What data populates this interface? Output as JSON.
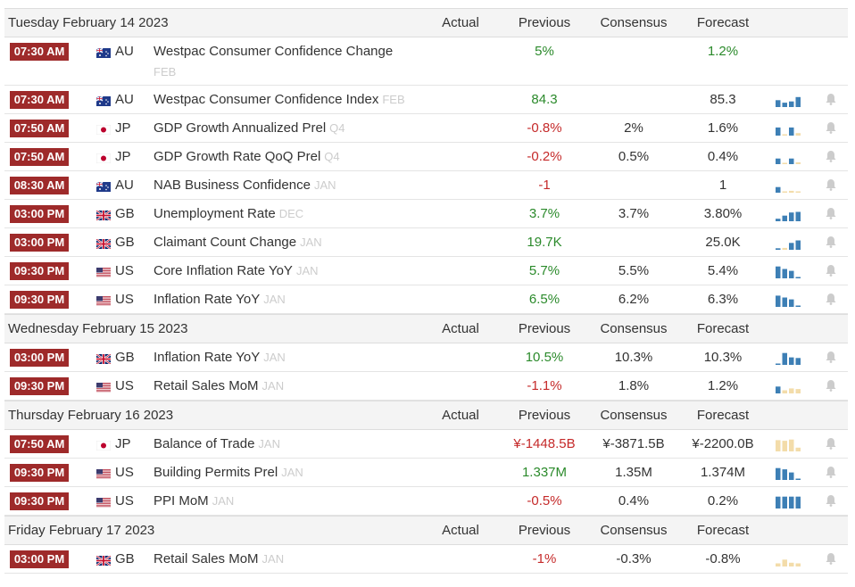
{
  "columns": {
    "actual": "Actual",
    "previous": "Previous",
    "consensus": "Consensus",
    "forecast": "Forecast"
  },
  "groups": [
    {
      "date": "Tuesday February 14 2023",
      "rows": [
        {
          "time": "07:30 AM",
          "flag": "au",
          "country": "AU",
          "event": "Westpac Consumer Confidence Change",
          "period": "FEB",
          "actual": "",
          "previous": "5%",
          "previous_color": "pos",
          "consensus": "",
          "forecast": "1.2%",
          "forecast_color": "pos",
          "tall": true,
          "chart": null
        },
        {
          "time": "07:30 AM",
          "flag": "au",
          "country": "AU",
          "event": "Westpac Consumer Confidence Index",
          "period": "FEB",
          "actual": "",
          "previous": "84.3",
          "previous_color": "pos",
          "consensus": "",
          "forecast": "85.3",
          "forecast_color": "",
          "chart": [
            {
              "v": 0.55,
              "c": "b"
            },
            {
              "v": 0.35,
              "c": "b"
            },
            {
              "v": 0.45,
              "c": "b"
            },
            {
              "v": 0.8,
              "c": "b"
            }
          ]
        },
        {
          "time": "07:50 AM",
          "flag": "jp",
          "country": "JP",
          "event": "GDP Growth Annualized Prel",
          "period": "Q4",
          "actual": "",
          "previous": "-0.8%",
          "previous_color": "neg",
          "consensus": "2%",
          "forecast": "1.6%",
          "forecast_color": "",
          "chart": [
            {
              "v": 0.65,
              "c": "b"
            },
            {
              "v": 0.1,
              "c": "t"
            },
            {
              "v": 0.65,
              "c": "b"
            },
            {
              "v": 0.2,
              "c": "t"
            }
          ]
        },
        {
          "time": "07:50 AM",
          "flag": "jp",
          "country": "JP",
          "event": "GDP Growth Rate QoQ Prel",
          "period": "Q4",
          "actual": "",
          "previous": "-0.2%",
          "previous_color": "neg",
          "consensus": "0.5%",
          "forecast": "0.4%",
          "forecast_color": "",
          "chart": [
            {
              "v": 0.45,
              "c": "b"
            },
            {
              "v": 0.1,
              "c": "t"
            },
            {
              "v": 0.45,
              "c": "b"
            },
            {
              "v": 0.15,
              "c": "t"
            }
          ]
        },
        {
          "time": "08:30 AM",
          "flag": "au",
          "country": "AU",
          "event": "NAB Business Confidence",
          "period": "JAN",
          "actual": "",
          "previous": "-1",
          "previous_color": "neg",
          "consensus": "",
          "forecast": "1",
          "forecast_color": "",
          "chart": [
            {
              "v": 0.45,
              "c": "b"
            },
            {
              "v": 0.1,
              "c": "t"
            },
            {
              "v": 0.15,
              "c": "t"
            },
            {
              "v": 0.1,
              "c": "t"
            }
          ]
        },
        {
          "time": "03:00 PM",
          "flag": "gb",
          "country": "GB",
          "event": "Unemployment Rate",
          "period": "DEC",
          "actual": "",
          "previous": "3.7%",
          "previous_color": "pos",
          "consensus": "3.7%",
          "forecast": "3.80%",
          "forecast_color": "",
          "chart": [
            {
              "v": 0.2,
              "c": "b"
            },
            {
              "v": 0.45,
              "c": "b"
            },
            {
              "v": 0.7,
              "c": "b"
            },
            {
              "v": 0.75,
              "c": "b"
            }
          ]
        },
        {
          "time": "03:00 PM",
          "flag": "gb",
          "country": "GB",
          "event": "Claimant Count Change",
          "period": "JAN",
          "actual": "",
          "previous": "19.7K",
          "previous_color": "pos",
          "consensus": "",
          "forecast": "25.0K",
          "forecast_color": "",
          "chart": [
            {
              "v": 0.12,
              "c": "b"
            },
            {
              "v": 0.15,
              "c": "t"
            },
            {
              "v": 0.55,
              "c": "b"
            },
            {
              "v": 0.75,
              "c": "b"
            }
          ]
        },
        {
          "time": "09:30 PM",
          "flag": "us",
          "country": "US",
          "event": "Core Inflation Rate YoY",
          "period": "JAN",
          "actual": "",
          "previous": "5.7%",
          "previous_color": "pos",
          "consensus": "5.5%",
          "forecast": "5.4%",
          "forecast_color": "",
          "chart": [
            {
              "v": 0.95,
              "c": "b"
            },
            {
              "v": 0.75,
              "c": "b"
            },
            {
              "v": 0.6,
              "c": "b"
            },
            {
              "v": 0.1,
              "c": "b"
            }
          ]
        },
        {
          "time": "09:30 PM",
          "flag": "us",
          "country": "US",
          "event": "Inflation Rate YoY",
          "period": "JAN",
          "actual": "",
          "previous": "6.5%",
          "previous_color": "pos",
          "consensus": "6.2%",
          "forecast": "6.3%",
          "forecast_color": "",
          "chart": [
            {
              "v": 0.9,
              "c": "b"
            },
            {
              "v": 0.75,
              "c": "b"
            },
            {
              "v": 0.6,
              "c": "b"
            },
            {
              "v": 0.1,
              "c": "b"
            }
          ]
        }
      ]
    },
    {
      "date": "Wednesday February 15 2023",
      "rows": [
        {
          "time": "03:00 PM",
          "flag": "gb",
          "country": "GB",
          "event": "Inflation Rate YoY",
          "period": "JAN",
          "actual": "",
          "previous": "10.5%",
          "previous_color": "pos",
          "consensus": "10.3%",
          "forecast": "10.3%",
          "forecast_color": "",
          "chart": [
            {
              "v": 0.1,
              "c": "b"
            },
            {
              "v": 0.95,
              "c": "b"
            },
            {
              "v": 0.6,
              "c": "b"
            },
            {
              "v": 0.55,
              "c": "b"
            }
          ]
        },
        {
          "time": "09:30 PM",
          "flag": "us",
          "country": "US",
          "event": "Retail Sales MoM",
          "period": "JAN",
          "actual": "",
          "previous": "-1.1%",
          "previous_color": "neg",
          "consensus": "1.8%",
          "forecast": "1.2%",
          "forecast_color": "",
          "chart": [
            {
              "v": 0.55,
              "c": "b"
            },
            {
              "v": 0.25,
              "c": "t"
            },
            {
              "v": 0.4,
              "c": "t"
            },
            {
              "v": 0.35,
              "c": "t"
            }
          ]
        }
      ]
    },
    {
      "date": "Thursday February 16 2023",
      "rows": [
        {
          "time": "07:50 AM",
          "flag": "jp",
          "country": "JP",
          "event": "Balance of Trade",
          "period": "JAN",
          "actual": "",
          "previous": "¥-1448.5B",
          "previous_color": "neg",
          "consensus": "¥-3871.5B",
          "forecast": "¥-2200.0B",
          "forecast_color": "",
          "chart": [
            {
              "v": 0.9,
              "c": "t"
            },
            {
              "v": 0.85,
              "c": "t"
            },
            {
              "v": 0.95,
              "c": "t"
            },
            {
              "v": 0.3,
              "c": "t"
            }
          ]
        },
        {
          "time": "09:30 PM",
          "flag": "us",
          "country": "US",
          "event": "Building Permits Prel",
          "period": "JAN",
          "actual": "",
          "previous": "1.337M",
          "previous_color": "pos",
          "consensus": "1.35M",
          "forecast": "1.374M",
          "forecast_color": "",
          "chart": [
            {
              "v": 0.95,
              "c": "b"
            },
            {
              "v": 0.85,
              "c": "b"
            },
            {
              "v": 0.6,
              "c": "b"
            },
            {
              "v": 0.1,
              "c": "b"
            }
          ]
        },
        {
          "time": "09:30 PM",
          "flag": "us",
          "country": "US",
          "event": "PPI MoM",
          "period": "JAN",
          "actual": "",
          "previous": "-0.5%",
          "previous_color": "neg",
          "consensus": "0.4%",
          "forecast": "0.2%",
          "forecast_color": "",
          "chart": [
            {
              "v": 0.95,
              "c": "b"
            },
            {
              "v": 0.95,
              "c": "b"
            },
            {
              "v": 0.95,
              "c": "b"
            },
            {
              "v": 0.95,
              "c": "b"
            }
          ]
        }
      ]
    },
    {
      "date": "Friday February 17 2023",
      "rows": [
        {
          "time": "03:00 PM",
          "flag": "gb",
          "country": "GB",
          "event": "Retail Sales MoM",
          "period": "JAN",
          "actual": "",
          "previous": "-1%",
          "previous_color": "neg",
          "consensus": "-0.3%",
          "forecast": "-0.8%",
          "forecast_color": "",
          "chart": [
            {
              "v": 0.25,
              "c": "t"
            },
            {
              "v": 0.55,
              "c": "t"
            },
            {
              "v": 0.3,
              "c": "t"
            },
            {
              "v": 0.25,
              "c": "t"
            }
          ]
        }
      ]
    }
  ],
  "colors": {
    "time_bg": "#9e2a2a",
    "positive": "#2b8a2b",
    "negative": "#c52a2a",
    "bar_blue": "#3d7fb5",
    "bar_tan": "#f3dcaa",
    "bell": "#cccccc"
  }
}
